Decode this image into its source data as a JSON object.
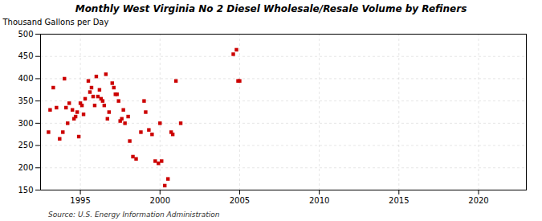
{
  "chart_data": {
    "type": "scatter",
    "title": "Monthly West Virginia No 2 Diesel Wholesale/Resale Volume by Refiners",
    "ylabel": "Thousand Gallons per Day",
    "annotations": [
      "Source: U.S. Energy Information Administration"
    ],
    "color": "#cc0000",
    "marker": "square",
    "grid": true,
    "xlim": [
      1992.5,
      2023
    ],
    "ylim": [
      150,
      500
    ],
    "xticks": [
      1995,
      2000,
      2005,
      2010,
      2015,
      2020
    ],
    "yticks": [
      150,
      200,
      250,
      300,
      350,
      400,
      450,
      500
    ],
    "x": [
      1993.0,
      1993.1,
      1993.3,
      1993.5,
      1993.7,
      1993.9,
      1994.0,
      1994.1,
      1994.2,
      1994.3,
      1994.5,
      1994.6,
      1994.7,
      1994.8,
      1994.9,
      1995.0,
      1995.1,
      1995.2,
      1995.3,
      1995.5,
      1995.6,
      1995.7,
      1995.8,
      1995.9,
      1996.0,
      1996.1,
      1996.2,
      1996.3,
      1996.4,
      1996.5,
      1996.6,
      1996.7,
      1996.8,
      1997.0,
      1997.1,
      1997.2,
      1997.3,
      1997.4,
      1997.5,
      1997.6,
      1997.7,
      1997.8,
      1998.0,
      1998.1,
      1998.3,
      1998.5,
      1998.8,
      1999.0,
      1999.1,
      1999.3,
      1999.5,
      1999.7,
      1999.9,
      2000.0,
      2000.1,
      2000.3,
      2000.5,
      2000.7,
      2000.8,
      2001.0,
      2001.3,
      2004.6,
      2004.8,
      2004.9,
      2005.0
    ],
    "values": [
      280,
      330,
      380,
      335,
      265,
      280,
      400,
      335,
      300,
      345,
      330,
      310,
      315,
      325,
      270,
      345,
      340,
      320,
      355,
      395,
      370,
      380,
      360,
      340,
      405,
      360,
      375,
      355,
      350,
      340,
      410,
      310,
      325,
      390,
      380,
      365,
      365,
      350,
      305,
      310,
      330,
      300,
      315,
      260,
      225,
      220,
      280,
      350,
      325,
      285,
      275,
      215,
      210,
      300,
      215,
      160,
      175,
      280,
      275,
      395,
      300,
      455,
      465,
      395,
      395
    ]
  }
}
